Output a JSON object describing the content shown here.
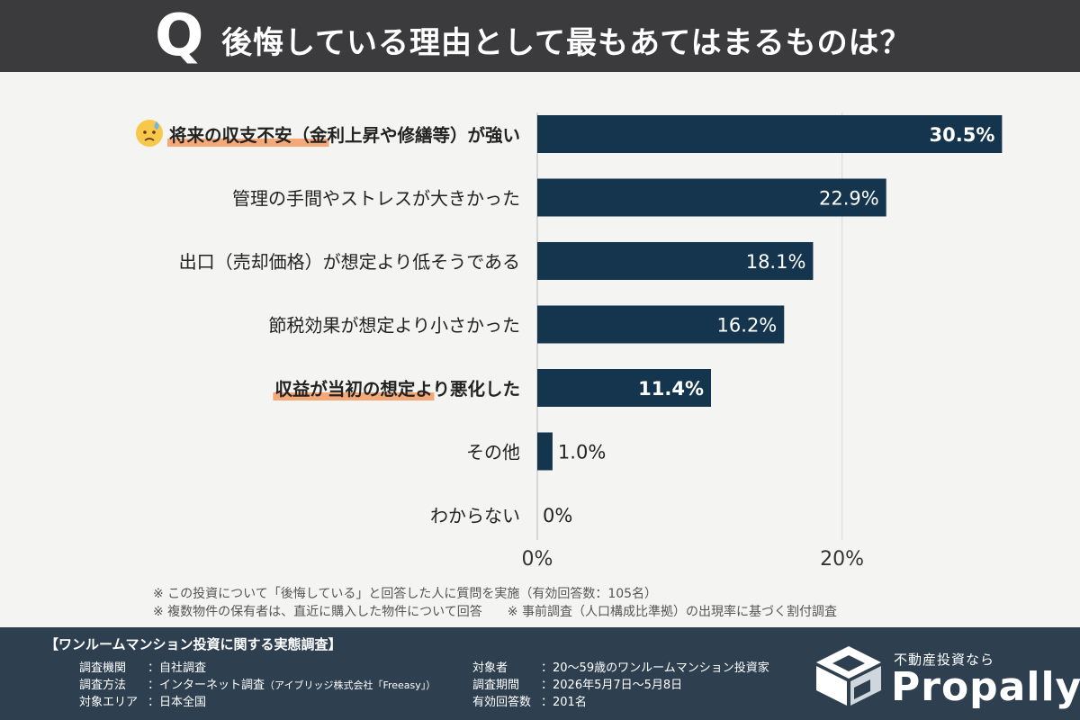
{
  "header": {
    "q_letter": "Q",
    "question": "後悔している理由として最もあてはまるものは？"
  },
  "chart_data": {
    "type": "bar",
    "orientation": "horizontal",
    "categories": [
      "将来の収支不安（金利上昇や修繕等）が強い",
      "管理の手間やストレスが大きかった",
      "出口（売却価格）が想定より低そうである",
      "節税効果が想定より小さかった",
      "収益が当初の想定より悪化した",
      "その他",
      "わからない"
    ],
    "values": [
      30.5,
      22.9,
      18.1,
      16.2,
      11.4,
      1.0,
      0
    ],
    "value_labels": [
      "30.5%",
      "22.9%",
      "18.1%",
      "16.2%",
      "11.4%",
      "1.0%",
      "0%"
    ],
    "highlighted": [
      true,
      false,
      false,
      false,
      true,
      false,
      false
    ],
    "label_highlight_chars": [
      9,
      0,
      0,
      0,
      9,
      0,
      0
    ],
    "x_ticks": [
      0,
      20
    ],
    "x_tick_labels": [
      "0%",
      "20%"
    ],
    "xlim": [
      0,
      33
    ],
    "grid": true,
    "bar_color": "#14354d",
    "highlight_color": "#f59a63",
    "emoji_icon": "worried-face-icon"
  },
  "notes": {
    "line1": "※ この投資について「後悔している」と回答した人に質問を実施（有効回答数：105名）",
    "line2a": "※ 複数物件の保有者は、直近に購入した物件について回答",
    "line2b": "※ 事前調査（人口構成比準拠）の出現率に基づく割付調査"
  },
  "footer": {
    "survey_title": "【ワンルームマンション投資に関する実態調査】",
    "left": [
      {
        "k": "調査機関",
        "v": "：自社調査",
        "note": ""
      },
      {
        "k": "調査方法",
        "v": "：インターネット調査",
        "note": "（アイブリッジ株式会社「Freeasy」）"
      },
      {
        "k": "対象エリア",
        "v": "：日本全国",
        "note": ""
      }
    ],
    "right": [
      {
        "k": "対象者",
        "v": "：20～59歳のワンルームマンション投資家"
      },
      {
        "k": "調査期間",
        "v": "：2026年5月7日～5月8日"
      },
      {
        "k": "有効回答数",
        "v": "：201名"
      }
    ],
    "logo_tagline": "不動産投資なら",
    "logo_name": "Propally",
    "logo_icon": "propally-logo-icon"
  }
}
